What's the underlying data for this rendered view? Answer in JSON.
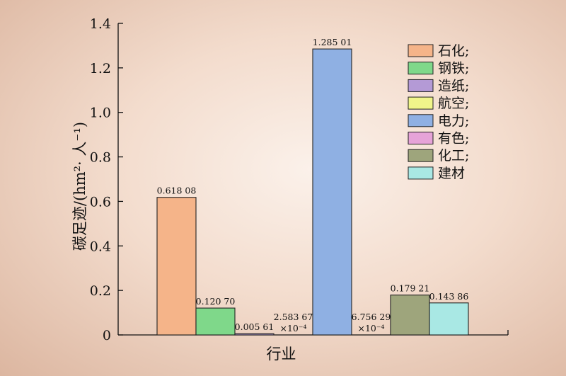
{
  "chart_data": {
    "type": "bar",
    "categories": [
      "石化;",
      "钢铁;",
      "造纸;",
      "航空;",
      "电力;",
      "有色;",
      "化工;",
      "建材"
    ],
    "values": [
      0.61808,
      0.1207,
      0.00561,
      0.000258367,
      1.28501,
      0.000675629,
      0.17921,
      0.14386
    ],
    "data_labels": [
      [
        "0.618 08"
      ],
      [
        "0.120 70"
      ],
      [
        "0.005 61"
      ],
      [
        "2.583 67",
        "×10⁻⁴"
      ],
      [
        "1.285 01"
      ],
      [
        "6.756 29",
        "×10⁻⁴"
      ],
      [
        "0.179 21"
      ],
      [
        "0.143 86"
      ]
    ],
    "colors": [
      "#f5b489",
      "#7fd88a",
      "#b49ad6",
      "#f0f58a",
      "#8fb0e3",
      "#e6a3d8",
      "#9ea57c",
      "#a9e8e4"
    ],
    "xlabel": "行业",
    "ylabel": "碳足迹/(hm²· 人⁻¹)",
    "ylim": [
      0,
      1.4
    ],
    "yticks": [
      "0",
      "0.2",
      "0.4",
      "0.6",
      "0.8",
      "1.0",
      "1.2",
      "1.4"
    ],
    "grid": false,
    "legend_position": "top-right"
  }
}
